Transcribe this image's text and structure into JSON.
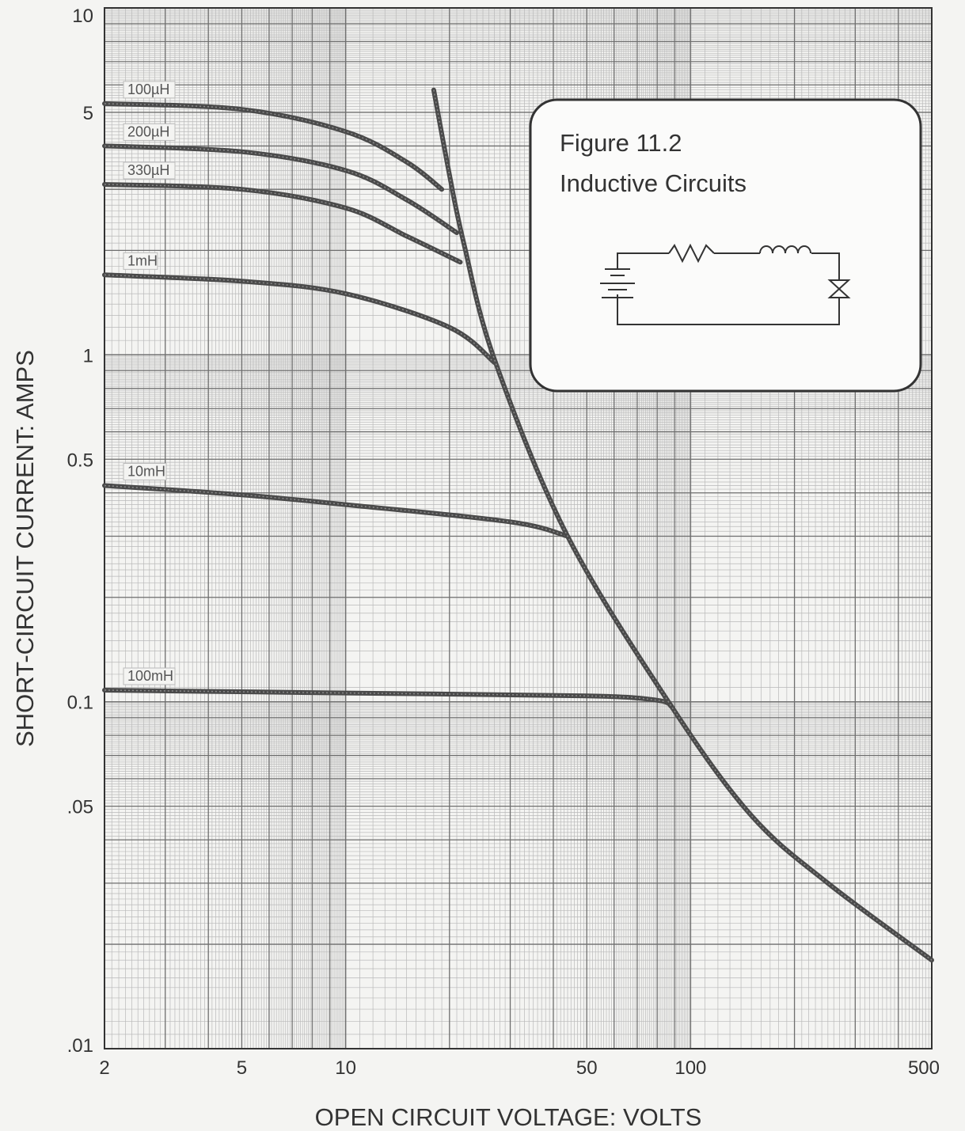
{
  "chart_data": {
    "type": "line",
    "x_scale": "log",
    "y_scale": "log",
    "xlim": [
      2,
      500
    ],
    "ylim": [
      0.01,
      10
    ],
    "grid": true,
    "xlabel": "OPEN CIRCUIT VOLTAGE:  VOLTS",
    "ylabel": "SHORT-CIRCUIT CURRENT:  AMPS",
    "x_ticks": [
      {
        "value": 2,
        "label": "2"
      },
      {
        "value": 5,
        "label": "5"
      },
      {
        "value": 10,
        "label": "10"
      },
      {
        "value": 50,
        "label": "50"
      },
      {
        "value": 100,
        "label": "100"
      },
      {
        "value": 500,
        "label": "500"
      }
    ],
    "y_ticks": [
      {
        "value": 10,
        "label": "10"
      },
      {
        "value": 5,
        "label": "5"
      },
      {
        "value": 1,
        "label": "1"
      },
      {
        "value": 0.5,
        "label": "0.5"
      },
      {
        "value": 0.1,
        "label": "0.1"
      },
      {
        "value": 0.05,
        "label": ".05"
      },
      {
        "value": 0.01,
        "label": ".01"
      }
    ],
    "series": [
      {
        "name": "100µH",
        "x": [
          2,
          5,
          10,
          15,
          19
        ],
        "y": [
          5.3,
          5.1,
          4.4,
          3.6,
          3.0
        ]
      },
      {
        "name": "200µH",
        "x": [
          2,
          5,
          10,
          15,
          21
        ],
        "y": [
          4.0,
          3.85,
          3.4,
          2.8,
          2.25
        ]
      },
      {
        "name": "330µH",
        "x": [
          2,
          5,
          10,
          15,
          21.5
        ],
        "y": [
          3.1,
          3.0,
          2.65,
          2.2,
          1.85
        ]
      },
      {
        "name": "1mH",
        "x": [
          2,
          5,
          10,
          20,
          27
        ],
        "y": [
          1.7,
          1.63,
          1.5,
          1.2,
          0.95
        ]
      },
      {
        "name": "10mH",
        "x": [
          2,
          5,
          10,
          30,
          44
        ],
        "y": [
          0.42,
          0.395,
          0.37,
          0.33,
          0.3
        ]
      },
      {
        "name": "100mH",
        "x": [
          2,
          10,
          50,
          80,
          88
        ],
        "y": [
          0.108,
          0.106,
          0.104,
          0.101,
          0.097
        ]
      },
      {
        "name": "",
        "x": [
          18,
          20,
          22,
          27,
          44,
          88,
          150,
          250,
          500
        ],
        "y": [
          5.8,
          3.3,
          2.1,
          0.97,
          0.3,
          0.097,
          0.047,
          0.03,
          0.018
        ]
      }
    ]
  },
  "inset": {
    "title_line1": "Figure 11.2",
    "title_line2": "Inductive Circuits"
  }
}
